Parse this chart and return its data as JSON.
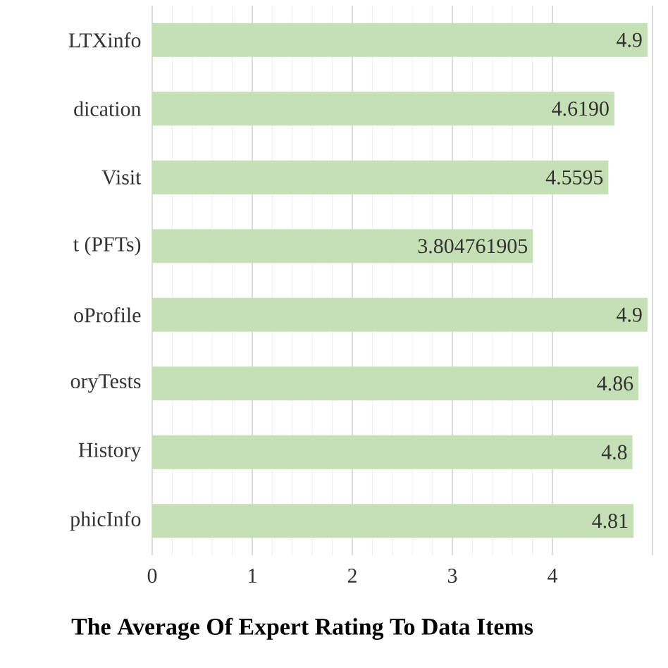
{
  "chart_data": {
    "type": "bar",
    "orientation": "horizontal",
    "title": "The Average Of Expert Rating To Data Items",
    "categories": [
      "LTXinfo",
      "dication",
      "Visit",
      "t (PFTs)",
      "oProfile",
      "oryTests",
      "History",
      "phicInfo"
    ],
    "values": [
      4.95,
      4.619,
      4.5595,
      3.804761905,
      4.95,
      4.86,
      4.8,
      4.81
    ],
    "value_labels": [
      "4.9",
      "4.6190",
      "4.5595",
      "3.804761905",
      "4.9",
      "4.86",
      "4.8",
      "4.81"
    ],
    "color": "#c5e0b4",
    "xlim": [
      0,
      5
    ],
    "xticks": [
      0,
      1,
      2,
      3,
      4
    ],
    "grid": "x"
  }
}
